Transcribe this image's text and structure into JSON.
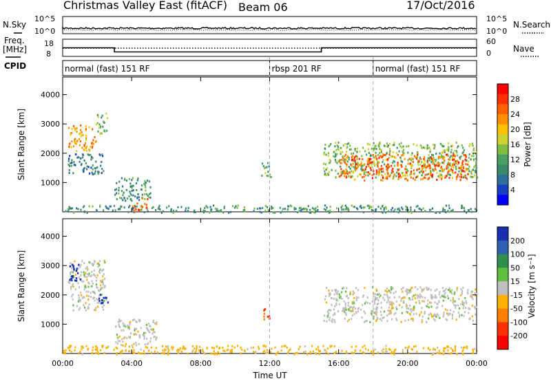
{
  "header": {
    "title": "Christmas Valley East (fitACF)",
    "beam": "Beam 06",
    "date": "17/Oct/2016"
  },
  "strips": {
    "nsky_label": "N.Sky",
    "nsky_ticks": [
      "10^5",
      "10^0"
    ],
    "nsearch_label": "N.Search",
    "nsearch_ticks": [
      "10^5",
      "10^0"
    ],
    "freq_label_1": "Freq.",
    "freq_label_2": "[MHz]",
    "freq_ticks": [
      "18",
      "8"
    ],
    "nave_label": "Nave",
    "nave_ticks": [
      "60",
      "0"
    ],
    "cpid_label": "CPID",
    "cpid_segments": [
      {
        "label": "normal (fast) 151 RF",
        "start_hour": 0,
        "end_hour": 12
      },
      {
        "label": "rbsp 201 RF",
        "start_hour": 12,
        "end_hour": 18
      },
      {
        "label": "normal (fast) 151 RF",
        "start_hour": 18,
        "end_hour": 24
      }
    ],
    "freq_mhz_steps": [
      {
        "start_hour": 0,
        "end_hour": 3,
        "value": 13
      },
      {
        "start_hour": 3,
        "end_hour": 15,
        "value": 10.6
      },
      {
        "start_hour": 15,
        "end_hour": 24,
        "value": 13
      }
    ]
  },
  "chart_data": [
    {
      "type": "heatmap",
      "panel": "power",
      "xlabel": "",
      "ylabel": "Slant Range [km]",
      "xlim": [
        0,
        24
      ],
      "ylim": [
        0,
        4600
      ],
      "yticks": [
        "1000",
        "2000",
        "3000",
        "4000"
      ],
      "yticks_values": [
        1000,
        2000,
        3000,
        4000
      ],
      "colorbar": {
        "label": "Power [dB]",
        "ticks": [
          "4",
          "8",
          "12",
          "16",
          "20",
          "24",
          "28"
        ],
        "tick_values": [
          4,
          8,
          12,
          16,
          20,
          24,
          28
        ],
        "range": [
          0,
          32
        ],
        "colors": [
          "#0000ff",
          "#1a3fc0",
          "#2f6f9f",
          "#3a8a6a",
          "#4aa060",
          "#7fbf40",
          "#cfd233",
          "#ffc000",
          "#ff9000",
          "#ff6000",
          "#ff3000",
          "#ff0000"
        ]
      },
      "echo_regions": [
        {
          "t0": 0.3,
          "t1": 1.9,
          "r0": 2100,
          "r1": 3000,
          "power_db": 22
        },
        {
          "t0": 1.9,
          "t1": 2.6,
          "r0": 2700,
          "r1": 3400,
          "power_db": 14
        },
        {
          "t0": 0.3,
          "t1": 2.4,
          "r0": 1300,
          "r1": 2000,
          "power_db": 8
        },
        {
          "t0": 3.0,
          "t1": 5.1,
          "r0": 400,
          "r1": 1200,
          "power_db": 10
        },
        {
          "t0": 4.0,
          "t1": 4.9,
          "r0": 0,
          "r1": 500,
          "power_db": 26
        },
        {
          "t0": 11.5,
          "t1": 12.1,
          "r0": 1200,
          "r1": 1700,
          "power_db": 12
        },
        {
          "t0": 15.1,
          "t1": 24.0,
          "r0": 1200,
          "r1": 2400,
          "power_db": 14
        },
        {
          "t0": 16.0,
          "t1": 23.5,
          "r0": 1100,
          "r1": 2000,
          "power_db": 26
        },
        {
          "t0": 0.0,
          "t1": 24.0,
          "r0": 0,
          "r1": 250,
          "power_db": 10
        }
      ]
    },
    {
      "type": "heatmap",
      "panel": "velocity",
      "xlabel": "Time UT",
      "ylabel": "Slant Range [km]",
      "xlim": [
        0,
        24
      ],
      "ylim": [
        0,
        4600
      ],
      "xticks": [
        "00:00",
        "04:00",
        "08:00",
        "12:00",
        "16:00",
        "20:00",
        "00:00"
      ],
      "xticks_values": [
        0,
        4,
        8,
        12,
        16,
        20,
        24
      ],
      "yticks": [
        "1000",
        "2000",
        "3000",
        "4000"
      ],
      "yticks_values": [
        1000,
        2000,
        3000,
        4000
      ],
      "dashed_lines_hours": [
        12,
        18
      ],
      "colorbar": {
        "label": "Velocity [m s⁻¹]",
        "ticks": [
          "200",
          "100",
          "50",
          "15",
          "-15",
          "-50",
          "-100",
          "-200"
        ],
        "tick_values": [
          200,
          100,
          50,
          15,
          -15,
          -50,
          -100,
          -200
        ],
        "colors": [
          "#1a2fb0",
          "#2f5fb0",
          "#2f8f4f",
          "#5fbf3f",
          "#bfbfbf",
          "#ffb000",
          "#ff7f00",
          "#ff3000",
          "#ff0000"
        ]
      },
      "echo_regions": [
        {
          "t0": 0.3,
          "t1": 2.5,
          "r0": 1500,
          "r1": 3200,
          "velocity": 0
        },
        {
          "t0": 0.3,
          "t1": 1.0,
          "r0": 2500,
          "r1": 3100,
          "velocity": 200
        },
        {
          "t0": 2.0,
          "t1": 2.6,
          "r0": 1700,
          "r1": 2100,
          "velocity": 200
        },
        {
          "t0": 3.0,
          "t1": 5.5,
          "r0": 300,
          "r1": 1200,
          "velocity": 0
        },
        {
          "t0": 11.6,
          "t1": 12.1,
          "r0": 1200,
          "r1": 1600,
          "velocity": -100
        },
        {
          "t0": 15.1,
          "t1": 24.0,
          "r0": 1100,
          "r1": 2300,
          "velocity": 0
        },
        {
          "t0": 0.0,
          "t1": 24.0,
          "r0": 0,
          "r1": 300,
          "velocity": -30
        }
      ]
    }
  ]
}
